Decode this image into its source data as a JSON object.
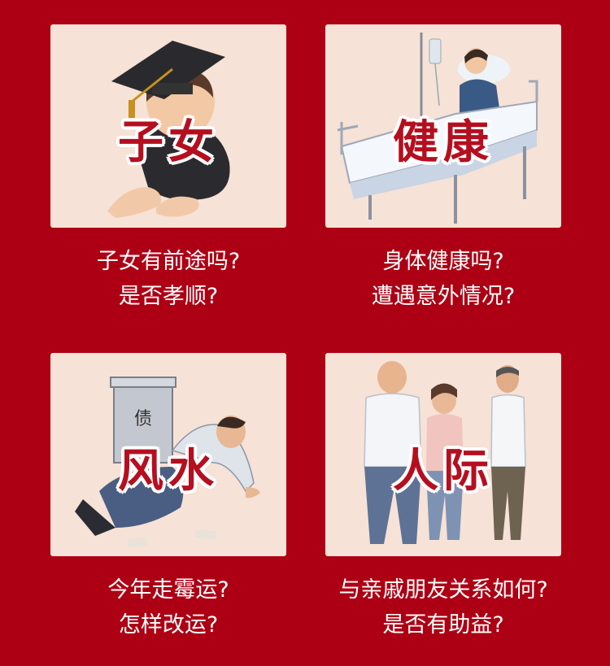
{
  "cards": [
    {
      "title": "子女",
      "line1": "子女有前途吗?",
      "line2": "是否孝顺?"
    },
    {
      "title": "健康",
      "line1": "身体健康吗?",
      "line2": "遭遇意外情况?"
    },
    {
      "title": "风水",
      "line1": "今年走霉运?",
      "line2": "怎样改运?",
      "box_char": "债"
    },
    {
      "title": "人际",
      "line1": "与亲戚朋友关系如何?",
      "line2": "是否有助益?"
    }
  ]
}
